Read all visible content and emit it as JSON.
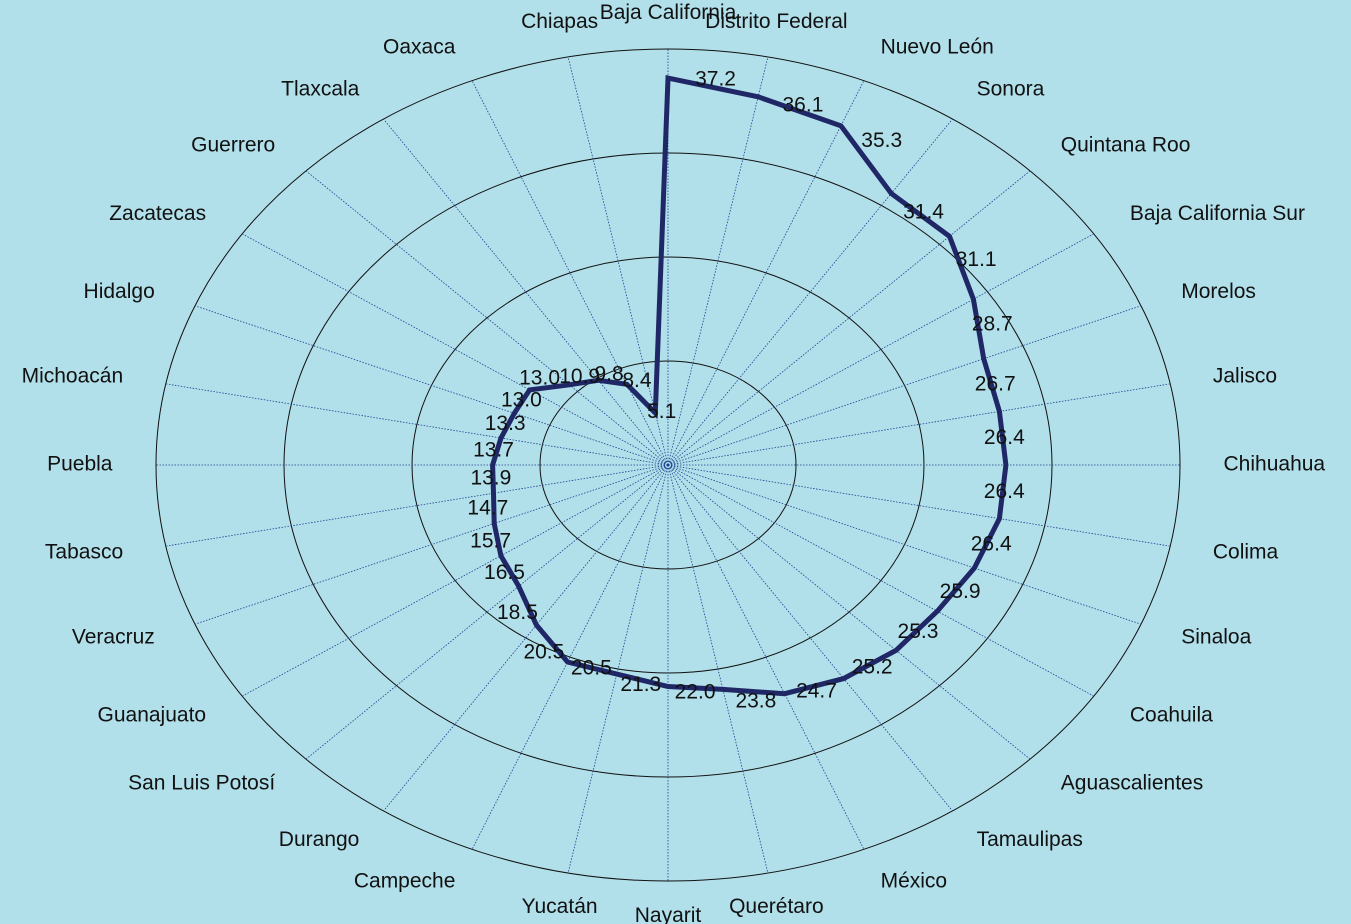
{
  "chart_data": {
    "type": "radar",
    "categories": [
      "Baja California",
      "Distrito Federal",
      "Nuevo León",
      "Sonora",
      "Quintana Roo",
      "Baja California Sur",
      "Morelos",
      "Jalisco",
      "Chihuahua",
      "Colima",
      "Sinaloa",
      "Coahuila",
      "Aguascalientes",
      "Tamaulipas",
      "México",
      "Querétaro",
      "Nayarit",
      "Yucatán",
      "Campeche",
      "Durango",
      "San Luis Potosí",
      "Guanajuato",
      "Veracruz",
      "Tabasco",
      "Puebla",
      "Michoacán",
      "Hidalgo",
      "Zacatecas",
      "Guerrero",
      "Tlaxcala",
      "Oaxaca",
      "Chiapas"
    ],
    "values": [
      37.2,
      36.1,
      35.3,
      31.4,
      31.1,
      28.7,
      26.7,
      26.4,
      26.4,
      26.4,
      25.9,
      25.3,
      25.2,
      24.7,
      23.8,
      22.0,
      21.3,
      20.5,
      20.5,
      18.5,
      16.5,
      15.7,
      14.7,
      13.9,
      13.7,
      13.3,
      13.0,
      13.0,
      10.9,
      9.8,
      8.4,
      5.1
    ],
    "value_labels": [
      "37.2",
      "36.1",
      "35.3",
      "31.4",
      "31.1",
      "28.7",
      "26.7",
      "26.4",
      "26.4",
      "26.4",
      "25.9",
      "25.3",
      "25.2",
      "24.7",
      "23.8",
      "22.0",
      "21.3",
      "20.5",
      "20.5",
      "18.5",
      "16.5",
      "15.7",
      "14.7",
      "13.9",
      "13.7",
      "13.3",
      "13.0",
      "13.0",
      "10.9",
      "9.8",
      "8.4",
      "5.1"
    ],
    "color": "#1f2766",
    "ylim": [
      0,
      40
    ],
    "yticks": [
      0,
      10,
      20,
      30,
      40
    ],
    "grid": true
  }
}
